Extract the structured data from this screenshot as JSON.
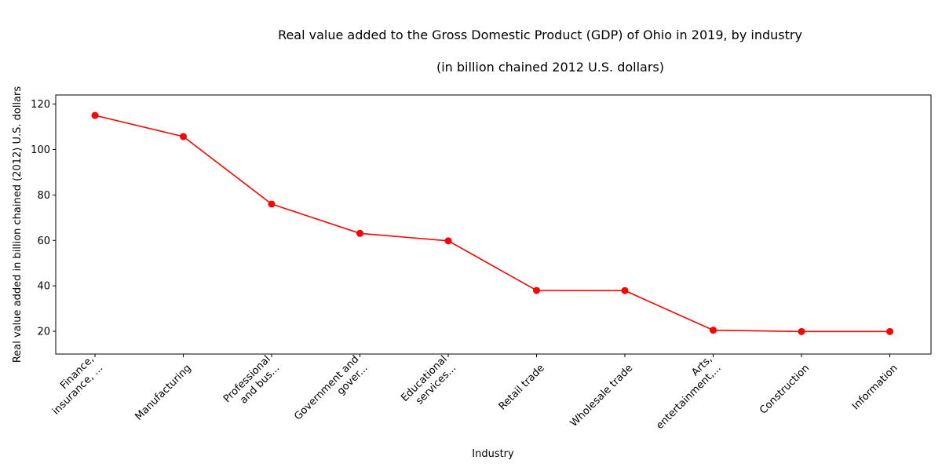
{
  "chart_data": {
    "type": "line",
    "title": "Real value added to the Gross Domestic Product (GDP) of Ohio in 2019, by industry",
    "subtitle": "(in billion chained 2012 U.S. dollars)",
    "xlabel": "Industry",
    "ylabel": "Real value added in billion chained (2012) U.S. dollars",
    "categories": [
      [
        "Finance,",
        "insurance, ..."
      ],
      [
        "Manufacturing"
      ],
      [
        "Professional",
        "and bus..."
      ],
      [
        "Government and",
        "gover..."
      ],
      [
        "Educational",
        "services..."
      ],
      [
        "Retail trade"
      ],
      [
        "Wholesale trade"
      ],
      [
        "Arts,",
        "entertainment,..."
      ],
      [
        "Construction"
      ],
      [
        "Information"
      ]
    ],
    "values": [
      115.0,
      105.7,
      76.0,
      63.1,
      59.8,
      38.0,
      37.9,
      20.5,
      19.9,
      19.9
    ],
    "ylim": [
      10,
      124
    ],
    "yticks": [
      20,
      40,
      60,
      80,
      100,
      120
    ],
    "grid": false,
    "line_color": "#ff0000",
    "marker_color": "#ff0000"
  }
}
